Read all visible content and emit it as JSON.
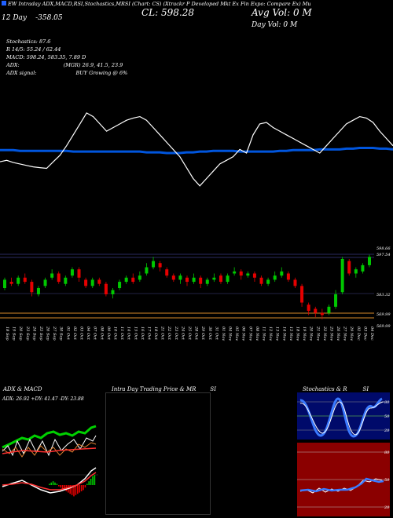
{
  "header": {
    "left": "EW Intraday ADX,MACD,RSI,Stochastics,MRSI (Chart: CS) (Xtrackr P Developed Mkt Ex Fin Expo: Compare Ex) Mu",
    "line2_left": "12 Day",
    "line2_avg": "-358.05",
    "line2_cl": "CL: 598.28",
    "line2_right": "Avg Vol: 0  M",
    "line3": "Day Vol: 0  M"
  },
  "indicators": {
    "stochastics": "Stochastics: 87.6",
    "r": "R 14/5: 55.24 / 62.44",
    "macd": "MACD: 598.24, 583.35, 7.89 D",
    "adx": "ADX:",
    "adx_val": "(MGR) 26.9, 41.5, 23.9",
    "adx_signal": "ADX signal:",
    "adx_signal_val": "BUY Growing @ 6%"
  },
  "colors": {
    "background": "#000000",
    "up": "#00c800",
    "down": "#e60000",
    "ma": "#0055dd",
    "price_line": "#ffffff",
    "level": "#d98a2a"
  },
  "chart_data": [
    {
      "type": "line",
      "panel": "top",
      "series": [
        {
          "values": [
            58,
            60,
            57,
            55,
            53,
            51,
            50,
            49,
            58,
            67,
            80,
            95,
            110,
            125,
            120,
            110,
            100,
            105,
            110,
            115,
            118,
            120,
            115,
            105,
            95,
            85,
            75,
            65,
            50,
            35,
            25,
            35,
            45,
            55,
            60,
            65,
            75,
            70,
            95,
            110,
            112,
            105,
            100,
            95,
            90,
            85,
            80,
            75,
            70,
            80,
            90,
            100,
            110,
            115,
            120,
            118,
            112,
            100,
            90,
            80
          ]
        },
        {
          "values": [
            74,
            74,
            74,
            73,
            73,
            73,
            73,
            73,
            73,
            73,
            73,
            72,
            72,
            72,
            72,
            72,
            72,
            72,
            72,
            72,
            72,
            72,
            71,
            71,
            71,
            70,
            70,
            70,
            71,
            71,
            72,
            72,
            73,
            73,
            73,
            73,
            72,
            72,
            72,
            72,
            72,
            72,
            73,
            73,
            74,
            74,
            74,
            74,
            75,
            75,
            75,
            75,
            76,
            76,
            77,
            77,
            77,
            76,
            76,
            75
          ]
        }
      ]
    },
    {
      "type": "candlestick",
      "panel": "price",
      "y_tick_labels": [
        "598.66",
        "597.54",
        "583.32",
        "569.99",
        "569.99"
      ],
      "categories": [
        "18 Sep",
        "19 Sep",
        "20 Sep",
        "23 Sep",
        "24 Sep",
        "25 Sep",
        "26 Sep",
        "27 Sep",
        "30 Sep",
        "01 Oct",
        "02 Oct",
        "03 Oct",
        "04 Oct",
        "07 Oct",
        "08 Oct",
        "09 Oct",
        "10 Oct",
        "11 Oct",
        "14 Oct",
        "15 Oct",
        "16 Oct",
        "17 Oct",
        "18 Oct",
        "21 Oct",
        "22 Oct",
        "23 Oct",
        "24 Oct",
        "25 Oct",
        "28 Oct",
        "29 Oct",
        "30 Oct",
        "31 Oct",
        "01 Nov",
        "04 Nov",
        "05 Nov",
        "06 Nov",
        "07 Nov",
        "08 Nov",
        "11 Nov",
        "12 Nov",
        "13 Nov",
        "14 Nov",
        "15 Nov",
        "18 Nov",
        "19 Nov",
        "20 Nov",
        "21 Nov",
        "22 Nov",
        "25 Nov",
        "26 Nov",
        "27 Nov",
        "29 Nov",
        "02 Dec",
        "03 Dec",
        "04 Dec"
      ],
      "candles": [
        {
          "o": 583,
          "c": 587,
          "h": 588,
          "l": 582
        },
        {
          "o": 586,
          "c": 585,
          "h": 588,
          "l": 584
        },
        {
          "o": 585,
          "c": 588,
          "h": 589,
          "l": 584
        },
        {
          "o": 588,
          "c": 586,
          "h": 590,
          "l": 585
        },
        {
          "o": 586,
          "c": 581,
          "h": 587,
          "l": 579
        },
        {
          "o": 580,
          "c": 583,
          "h": 584,
          "l": 579
        },
        {
          "o": 584,
          "c": 587,
          "h": 588,
          "l": 583
        },
        {
          "o": 588,
          "c": 590,
          "h": 592,
          "l": 587
        },
        {
          "o": 590,
          "c": 586,
          "h": 591,
          "l": 585
        },
        {
          "o": 585,
          "c": 588,
          "h": 589,
          "l": 584
        },
        {
          "o": 589,
          "c": 592,
          "h": 593,
          "l": 588
        },
        {
          "o": 592,
          "c": 588,
          "h": 593,
          "l": 586
        },
        {
          "o": 587,
          "c": 584,
          "h": 588,
          "l": 583
        },
        {
          "o": 584,
          "c": 587,
          "h": 588,
          "l": 583
        },
        {
          "o": 587,
          "c": 585,
          "h": 588,
          "l": 584
        },
        {
          "o": 585,
          "c": 580,
          "h": 586,
          "l": 579
        },
        {
          "o": 580,
          "c": 582,
          "h": 583,
          "l": 578
        },
        {
          "o": 583,
          "c": 586,
          "h": 587,
          "l": 582
        },
        {
          "o": 586,
          "c": 588,
          "h": 589,
          "l": 585
        },
        {
          "o": 588,
          "c": 586,
          "h": 590,
          "l": 585
        },
        {
          "o": 587,
          "c": 589,
          "h": 591,
          "l": 586
        },
        {
          "o": 590,
          "c": 593,
          "h": 595,
          "l": 589
        },
        {
          "o": 593,
          "c": 596,
          "h": 598,
          "l": 592
        },
        {
          "o": 595,
          "c": 593,
          "h": 596,
          "l": 591
        },
        {
          "o": 592,
          "c": 589,
          "h": 593,
          "l": 588
        },
        {
          "o": 589,
          "c": 587,
          "h": 590,
          "l": 586
        },
        {
          "o": 587,
          "c": 589,
          "h": 590,
          "l": 585
        },
        {
          "o": 588,
          "c": 586,
          "h": 589,
          "l": 584
        },
        {
          "o": 586,
          "c": 588,
          "h": 590,
          "l": 585
        },
        {
          "o": 588,
          "c": 585,
          "h": 589,
          "l": 583
        },
        {
          "o": 585,
          "c": 587,
          "h": 588,
          "l": 584
        },
        {
          "o": 587,
          "c": 588,
          "h": 590,
          "l": 586
        },
        {
          "o": 589,
          "c": 586,
          "h": 590,
          "l": 585
        },
        {
          "o": 586,
          "c": 589,
          "h": 590,
          "l": 585
        },
        {
          "o": 590,
          "c": 591,
          "h": 593,
          "l": 589
        },
        {
          "o": 591,
          "c": 589,
          "h": 592,
          "l": 587
        },
        {
          "o": 589,
          "c": 590,
          "h": 591,
          "l": 588
        },
        {
          "o": 590,
          "c": 588,
          "h": 591,
          "l": 586
        },
        {
          "o": 588,
          "c": 585,
          "h": 589,
          "l": 584
        },
        {
          "o": 585,
          "c": 587,
          "h": 588,
          "l": 584
        },
        {
          "o": 587,
          "c": 589,
          "h": 591,
          "l": 586
        },
        {
          "o": 589,
          "c": 591,
          "h": 593,
          "l": 588
        },
        {
          "o": 590,
          "c": 587,
          "h": 591,
          "l": 586
        },
        {
          "o": 587,
          "c": 584,
          "h": 588,
          "l": 583
        },
        {
          "o": 584,
          "c": 576,
          "h": 585,
          "l": 574
        },
        {
          "o": 575,
          "c": 572,
          "h": 576,
          "l": 570
        },
        {
          "o": 573,
          "c": 571,
          "h": 574,
          "l": 569
        },
        {
          "o": 571,
          "c": 570,
          "h": 573,
          "l": 568
        },
        {
          "o": 571,
          "c": 574,
          "h": 575,
          "l": 570
        },
        {
          "o": 574,
          "c": 580,
          "h": 582,
          "l": 573
        },
        {
          "o": 581,
          "c": 597,
          "h": 598,
          "l": 580
        },
        {
          "o": 596,
          "c": 590,
          "h": 597,
          "l": 589
        },
        {
          "o": 590,
          "c": 592,
          "h": 593,
          "l": 588
        },
        {
          "o": 591,
          "c": 594,
          "h": 595,
          "l": 590
        },
        {
          "o": 594,
          "c": 598,
          "h": 599,
          "l": 593
        }
      ]
    },
    {
      "type": "line",
      "panel": "adx",
      "title": "ADX  & MACD",
      "labels": "ADX: 26.92  +DY: 41.47  -DY: 23.88"
    },
    {
      "type": "candlestick",
      "panel": "intraday",
      "title": "Intra  Day Trading Price  & MR",
      "title_right": "SI"
    },
    {
      "type": "line",
      "panel": "stochastics",
      "title": "Stochastics & R",
      "title_right": "SI",
      "y_tick_labels": [
        "80",
        "50",
        "20"
      ]
    },
    {
      "type": "line",
      "panel": "rsi",
      "y_tick_labels": [
        "80",
        "50",
        "20"
      ]
    }
  ]
}
